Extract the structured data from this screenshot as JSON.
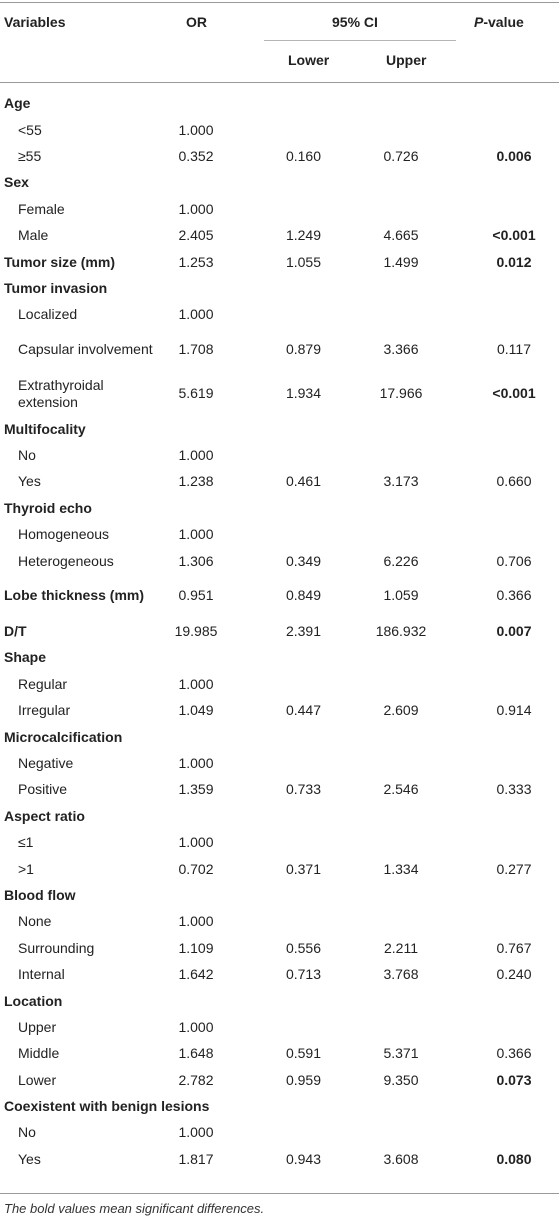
{
  "header": {
    "variables": "Variables",
    "or": "OR",
    "ci": "95% CI",
    "lower": "Lower",
    "upper": "Upper",
    "p_italic": "P",
    "p_rest": "-value"
  },
  "rows": [
    {
      "kind": "group",
      "label": "Age",
      "or": "",
      "lower": "",
      "upper": "",
      "p": "",
      "bold_p": false
    },
    {
      "kind": "item",
      "label": "<55",
      "or": "1.000",
      "lower": "",
      "upper": "",
      "p": "",
      "bold_p": false
    },
    {
      "kind": "item",
      "label": "≥55",
      "or": "0.352",
      "lower": "0.160",
      "upper": "0.726",
      "p": "0.006",
      "bold_p": true
    },
    {
      "kind": "group",
      "label": "Sex",
      "or": "",
      "lower": "",
      "upper": "",
      "p": "",
      "bold_p": false
    },
    {
      "kind": "item",
      "label": "Female",
      "or": "1.000",
      "lower": "",
      "upper": "",
      "p": "",
      "bold_p": false
    },
    {
      "kind": "item",
      "label": "Male",
      "or": "2.405",
      "lower": "1.249",
      "upper": "4.665",
      "p": "<0.001",
      "bold_p": true
    },
    {
      "kind": "group",
      "label": "Tumor size (mm)",
      "or": "1.253",
      "lower": "1.055",
      "upper": "1.499",
      "p": "0.012",
      "bold_p": true
    },
    {
      "kind": "group",
      "label": "Tumor invasion",
      "or": "",
      "lower": "",
      "upper": "",
      "p": "",
      "bold_p": false
    },
    {
      "kind": "item",
      "label": "Localized",
      "or": "1.000",
      "lower": "",
      "upper": "",
      "p": "",
      "bold_p": false
    },
    {
      "kind": "item2",
      "label": "Capsular involvement",
      "or": "1.708",
      "lower": "0.879",
      "upper": "3.366",
      "p": "0.117",
      "bold_p": false
    },
    {
      "kind": "item2",
      "label": "Extrathyroidal extension",
      "or": "5.619",
      "lower": "1.934",
      "upper": "17.966",
      "p": "<0.001",
      "bold_p": true
    },
    {
      "kind": "group",
      "label": "Multifocality",
      "or": "",
      "lower": "",
      "upper": "",
      "p": "",
      "bold_p": false
    },
    {
      "kind": "item",
      "label": "No",
      "or": "1.000",
      "lower": "",
      "upper": "",
      "p": "",
      "bold_p": false
    },
    {
      "kind": "item",
      "label": "Yes",
      "or": "1.238",
      "lower": "0.461",
      "upper": "3.173",
      "p": "0.660",
      "bold_p": false
    },
    {
      "kind": "group",
      "label": "Thyroid echo",
      "or": "",
      "lower": "",
      "upper": "",
      "p": "",
      "bold_p": false
    },
    {
      "kind": "item",
      "label": "Homogeneous",
      "or": "1.000",
      "lower": "",
      "upper": "",
      "p": "",
      "bold_p": false
    },
    {
      "kind": "item",
      "label": "Heterogeneous",
      "or": "1.306",
      "lower": "0.349",
      "upper": "6.226",
      "p": "0.706",
      "bold_p": false
    },
    {
      "kind": "group2",
      "label": "Lobe thickness (mm)",
      "or": "0.951",
      "lower": "0.849",
      "upper": "1.059",
      "p": "0.366",
      "bold_p": false
    },
    {
      "kind": "group",
      "label": "D/T",
      "or": "19.985",
      "lower": "2.391",
      "upper": "186.932",
      "p": "0.007",
      "bold_p": true
    },
    {
      "kind": "group",
      "label": "Shape",
      "or": "",
      "lower": "",
      "upper": "",
      "p": "",
      "bold_p": false
    },
    {
      "kind": "item",
      "label": "Regular",
      "or": "1.000",
      "lower": "",
      "upper": "",
      "p": "",
      "bold_p": false
    },
    {
      "kind": "item",
      "label": "Irregular",
      "or": "1.049",
      "lower": "0.447",
      "upper": "2.609",
      "p": "0.914",
      "bold_p": false
    },
    {
      "kind": "group",
      "label": "Microcalcification",
      "or": "",
      "lower": "",
      "upper": "",
      "p": "",
      "bold_p": false
    },
    {
      "kind": "item",
      "label": "Negative",
      "or": "1.000",
      "lower": "",
      "upper": "",
      "p": "",
      "bold_p": false
    },
    {
      "kind": "item",
      "label": "Positive",
      "or": "1.359",
      "lower": "0.733",
      "upper": "2.546",
      "p": "0.333",
      "bold_p": false
    },
    {
      "kind": "group",
      "label": "Aspect ratio",
      "or": "",
      "lower": "",
      "upper": "",
      "p": "",
      "bold_p": false
    },
    {
      "kind": "item",
      "label": "≤1",
      "or": "1.000",
      "lower": "",
      "upper": "",
      "p": "",
      "bold_p": false
    },
    {
      "kind": "item",
      "label": ">1",
      "or": "0.702",
      "lower": "0.371",
      "upper": "1.334",
      "p": "0.277",
      "bold_p": false
    },
    {
      "kind": "group",
      "label": "Blood flow",
      "or": "",
      "lower": "",
      "upper": "",
      "p": "",
      "bold_p": false
    },
    {
      "kind": "item",
      "label": "None",
      "or": "1.000",
      "lower": "",
      "upper": "",
      "p": "",
      "bold_p": false
    },
    {
      "kind": "item",
      "label": "Surrounding",
      "or": "1.109",
      "lower": "0.556",
      "upper": "2.211",
      "p": "0.767",
      "bold_p": false
    },
    {
      "kind": "item",
      "label": "Internal",
      "or": "1.642",
      "lower": "0.713",
      "upper": "3.768",
      "p": "0.240",
      "bold_p": false
    },
    {
      "kind": "group",
      "label": "Location",
      "or": "",
      "lower": "",
      "upper": "",
      "p": "",
      "bold_p": false
    },
    {
      "kind": "item",
      "label": "Upper",
      "or": "1.000",
      "lower": "",
      "upper": "",
      "p": "",
      "bold_p": false
    },
    {
      "kind": "item",
      "label": "Middle",
      "or": "1.648",
      "lower": "0.591",
      "upper": "5.371",
      "p": "0.366",
      "bold_p": false
    },
    {
      "kind": "item",
      "label": "Lower",
      "or": "2.782",
      "lower": "0.959",
      "upper": "9.350",
      "p": "0.073",
      "bold_p": true
    },
    {
      "kind": "group",
      "label": "Coexistent with benign lesions",
      "or": "",
      "lower": "",
      "upper": "",
      "p": "",
      "bold_p": false
    },
    {
      "kind": "item",
      "label": "No",
      "or": "1.000",
      "lower": "",
      "upper": "",
      "p": "",
      "bold_p": false
    },
    {
      "kind": "item",
      "label": "Yes",
      "or": "1.817",
      "lower": "0.943",
      "upper": "3.608",
      "p": "0.080",
      "bold_p": true
    }
  ],
  "footnote": "The bold values mean significant differences."
}
